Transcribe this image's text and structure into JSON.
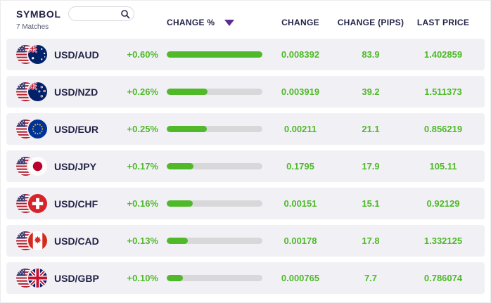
{
  "header": {
    "symbol_label": "SYMBOL",
    "matches_label": "7 Matches",
    "search_placeholder": "",
    "columns": {
      "change_percent": "CHANGE %",
      "change": "CHANGE",
      "change_pips": "CHANGE (PIPS)",
      "last_price": "LAST PRICE"
    }
  },
  "icons": {
    "search": "search-icon",
    "sort": "sort-descending-icon"
  },
  "colors": {
    "positive_green": "#4fb929",
    "navy_text": "#232347",
    "sort_arrow_purple": "#5c2d91",
    "row_background": "#f1f1f5",
    "bar_track": "#d8d8da"
  },
  "rows": [
    {
      "symbol": "USD/AUD",
      "base_flag": "us",
      "quote_flag": "au",
      "change_percent": "+0.60%",
      "bar_fill_percent": 100,
      "change": "0.008392",
      "change_pips": "83.9",
      "last_price": "1.402859"
    },
    {
      "symbol": "USD/NZD",
      "base_flag": "us",
      "quote_flag": "nz",
      "change_percent": "+0.26%",
      "bar_fill_percent": 43,
      "change": "0.003919",
      "change_pips": "39.2",
      "last_price": "1.511373"
    },
    {
      "symbol": "USD/EUR",
      "base_flag": "us",
      "quote_flag": "eu",
      "change_percent": "+0.25%",
      "bar_fill_percent": 42,
      "change": "0.00211",
      "change_pips": "21.1",
      "last_price": "0.856219"
    },
    {
      "symbol": "USD/JPY",
      "base_flag": "us",
      "quote_flag": "jp",
      "change_percent": "+0.17%",
      "bar_fill_percent": 28,
      "change": "0.1795",
      "change_pips": "17.9",
      "last_price": "105.11"
    },
    {
      "symbol": "USD/CHF",
      "base_flag": "us",
      "quote_flag": "ch",
      "change_percent": "+0.16%",
      "bar_fill_percent": 27,
      "change": "0.00151",
      "change_pips": "15.1",
      "last_price": "0.92129"
    },
    {
      "symbol": "USD/CAD",
      "base_flag": "us",
      "quote_flag": "ca",
      "change_percent": "+0.13%",
      "bar_fill_percent": 22,
      "change": "0.00178",
      "change_pips": "17.8",
      "last_price": "1.332125"
    },
    {
      "symbol": "USD/GBP",
      "base_flag": "us",
      "quote_flag": "gb",
      "change_percent": "+0.10%",
      "bar_fill_percent": 17,
      "change": "0.000765",
      "change_pips": "7.7",
      "last_price": "0.786074"
    }
  ]
}
